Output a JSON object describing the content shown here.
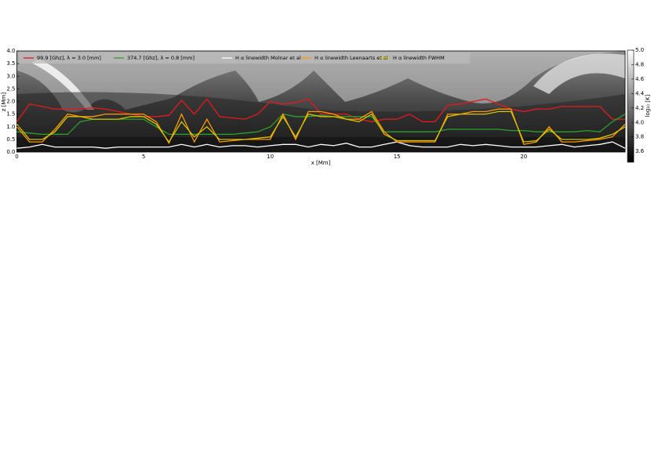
{
  "chart_data": {
    "type": "line",
    "x": [
      0,
      0.5,
      1,
      1.5,
      2,
      2.5,
      3,
      3.5,
      4,
      4.5,
      5,
      5.5,
      6,
      6.5,
      7,
      7.5,
      8,
      8.5,
      9,
      9.5,
      10,
      10.5,
      11,
      11.5,
      12,
      12.5,
      13,
      13.5,
      14,
      14.5,
      15,
      15.5,
      16,
      16.5,
      17,
      17.5,
      18,
      18.5,
      19,
      19.5,
      20,
      20.5,
      21,
      21.5,
      22,
      22.5,
      23,
      23.5,
      24
    ],
    "series": [
      {
        "name": "99.9 [Ghz], λ = 3.0 [mm]",
        "color": "#e41a1c",
        "values": [
          1.2,
          1.9,
          1.8,
          1.7,
          1.7,
          1.7,
          1.75,
          1.7,
          1.6,
          1.5,
          1.4,
          1.4,
          1.45,
          2.05,
          1.5,
          2.1,
          1.4,
          1.35,
          1.3,
          1.5,
          2.0,
          1.9,
          1.95,
          2.1,
          1.5,
          1.5,
          1.5,
          1.3,
          1.2,
          1.3,
          1.3,
          1.5,
          1.2,
          1.2,
          1.85,
          1.9,
          2.0,
          2.1,
          1.9,
          1.7,
          1.6,
          1.7,
          1.7,
          1.8,
          1.8,
          1.8,
          1.8,
          1.3,
          1.3
        ]
      },
      {
        "name": "374.7 [Ghz], λ = 0.8 [mm]",
        "color": "#2ca02c",
        "values": [
          0.8,
          0.75,
          0.7,
          0.7,
          0.7,
          1.2,
          1.3,
          1.3,
          1.3,
          1.3,
          1.3,
          1.0,
          0.7,
          0.7,
          0.7,
          0.7,
          0.7,
          0.7,
          0.75,
          0.8,
          1.0,
          1.5,
          1.4,
          1.4,
          1.45,
          1.4,
          1.4,
          1.4,
          1.4,
          0.8,
          0.8,
          0.8,
          0.8,
          0.8,
          0.9,
          0.9,
          0.9,
          0.9,
          0.9,
          0.85,
          0.85,
          0.8,
          0.8,
          0.8,
          0.8,
          0.85,
          0.8,
          1.2,
          1.5
        ]
      },
      {
        "name": "H α linewidth Molnar et al",
        "color": "#ffffff",
        "values": [
          0.15,
          0.2,
          0.3,
          0.2,
          0.2,
          0.2,
          0.2,
          0.15,
          0.2,
          0.2,
          0.2,
          0.2,
          0.2,
          0.3,
          0.2,
          0.3,
          0.2,
          0.25,
          0.25,
          0.2,
          0.25,
          0.3,
          0.3,
          0.2,
          0.3,
          0.25,
          0.35,
          0.2,
          0.2,
          0.3,
          0.4,
          0.25,
          0.2,
          0.2,
          0.2,
          0.3,
          0.25,
          0.3,
          0.25,
          0.2,
          0.2,
          0.2,
          0.25,
          0.3,
          0.2,
          0.25,
          0.3,
          0.4,
          0.15
        ]
      },
      {
        "name": "H α linewidth Leenaarts et al",
        "color": "#ff9900",
        "values": [
          1.0,
          0.4,
          0.4,
          0.9,
          1.5,
          1.4,
          1.4,
          1.5,
          1.5,
          1.5,
          1.5,
          1.2,
          0.35,
          1.5,
          0.4,
          1.3,
          0.4,
          0.45,
          0.5,
          0.5,
          0.5,
          1.5,
          0.5,
          1.6,
          1.6,
          1.5,
          1.3,
          1.3,
          1.6,
          0.8,
          0.4,
          0.4,
          0.4,
          0.4,
          1.5,
          1.5,
          1.6,
          1.6,
          1.7,
          1.7,
          0.3,
          0.4,
          1.0,
          0.4,
          0.4,
          0.45,
          0.5,
          0.6,
          1.1
        ]
      },
      {
        "name": "H α linewidth FWHM",
        "color": "#d4c400",
        "values": [
          1.1,
          0.5,
          0.5,
          0.8,
          1.4,
          1.4,
          1.3,
          1.3,
          1.3,
          1.4,
          1.4,
          1.1,
          0.4,
          1.2,
          0.6,
          1.0,
          0.5,
          0.5,
          0.5,
          0.55,
          0.6,
          1.4,
          0.6,
          1.5,
          1.4,
          1.4,
          1.3,
          1.2,
          1.5,
          0.7,
          0.45,
          0.45,
          0.45,
          0.45,
          1.4,
          1.5,
          1.5,
          1.5,
          1.6,
          1.6,
          0.4,
          0.45,
          0.9,
          0.5,
          0.5,
          0.5,
          0.55,
          0.7,
          1.0
        ]
      }
    ],
    "xlabel": "x [Mm]",
    "ylabel": "z [Mm]",
    "xlim": [
      0,
      24
    ],
    "ylim": [
      0,
      4
    ],
    "xticks": [
      0,
      5,
      10,
      15,
      20
    ],
    "yticks": [
      {
        "value": 0,
        "label": "0.0"
      },
      0.5,
      {
        "value": 1,
        "label": "1.0"
      },
      1.5,
      {
        "value": 2,
        "label": "2.0"
      },
      2.5,
      {
        "value": 3,
        "label": "3.0"
      },
      3.5,
      {
        "value": 4,
        "label": "4.0"
      }
    ],
    "colorbar": {
      "label": "log₁₀ [K]",
      "lim": [
        3.45,
        5.0
      ],
      "ticks": [
        3.6,
        3.8,
        {
          "value": 4,
          "label": "4.0"
        },
        4.2,
        4.4,
        4.6,
        4.8,
        {
          "value": 5,
          "label": "5.0"
        }
      ]
    }
  }
}
